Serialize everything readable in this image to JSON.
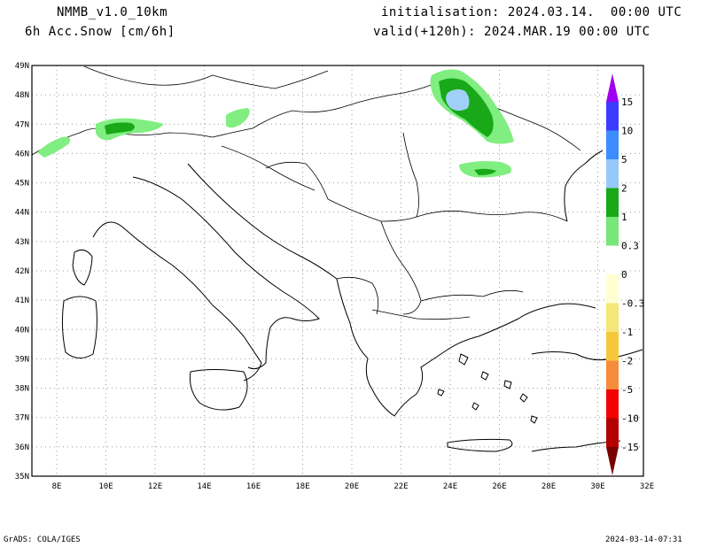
{
  "header": {
    "model": "NMMB_v1.0_10km",
    "variable": "6h Acc.Snow [cm/6h]",
    "init": "initialisation: 2024.03.14.  00:00 UTC",
    "valid": "valid(+120h): 2024.MAR.19 00:00 UTC"
  },
  "map": {
    "lat_labels": [
      "49N",
      "48N",
      "47N",
      "46N",
      "45N",
      "44N",
      "43N",
      "42N",
      "41N",
      "40N",
      "39N",
      "38N",
      "37N",
      "36N",
      "35N"
    ],
    "lon_labels": [
      "8E",
      "10E",
      "12E",
      "14E",
      "16E",
      "18E",
      "20E",
      "22E",
      "24E",
      "26E",
      "28E",
      "30E",
      "32E"
    ],
    "grid": "dotted",
    "snow_fill_colors": {
      "light": "#80ee80",
      "mid": "#18a818",
      "heavy": "#a0d0f8"
    }
  },
  "colorbar": {
    "labels": [
      "15",
      "10",
      "5",
      "2",
      "1",
      "0.3",
      "0",
      "-0.3",
      "-1",
      "-2",
      "-5",
      "-10",
      "-15"
    ],
    "colors": [
      "#a000f0",
      "#3c3cff",
      "#3c8cff",
      "#96c8fa",
      "#18a818",
      "#78e678",
      "#ffffff",
      "#ffffd2",
      "#f5e678",
      "#f5c83c",
      "#f58c3c",
      "#f00000",
      "#b40000",
      "#780000"
    ]
  },
  "footer": {
    "left": "GrADS: COLA/IGES",
    "right": "2024-03-14-07:31"
  }
}
